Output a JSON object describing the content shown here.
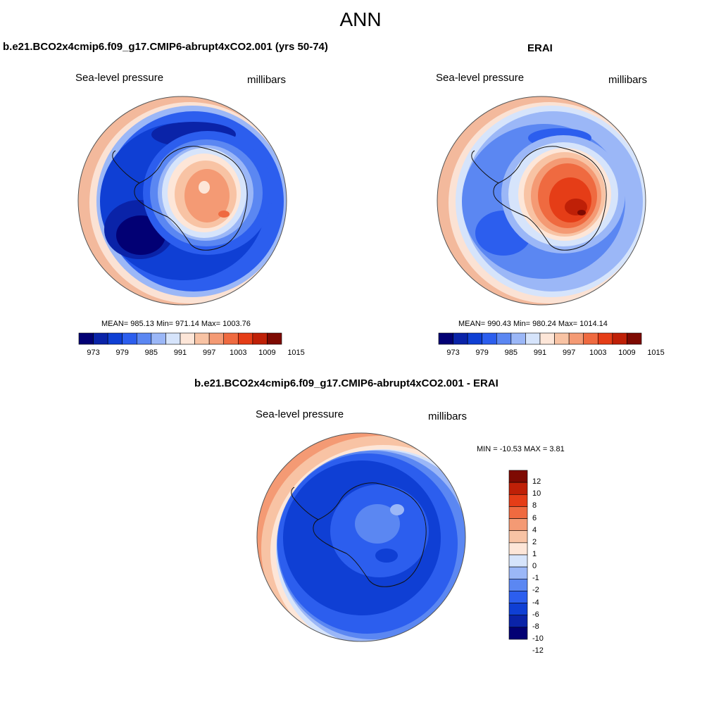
{
  "figure": {
    "title": "ANN"
  },
  "panels": {
    "model": {
      "title": "b.e21.BCO2x4cmip6.f09_g17.CMIP6-abrupt4xCO2.001 (yrs 50-74)",
      "left_label": "Sea-level pressure",
      "right_label": "millibars",
      "stats": "MEAN= 985.13  Min= 971.14  Max= 1003.76",
      "colorbar_ticks": [
        "973",
        "979",
        "985",
        "991",
        "997",
        "1003",
        "1009",
        "1015"
      ],
      "colors": [
        "#020074",
        "#0a23a8",
        "#0f3fd4",
        "#2c5eee",
        "#5b87f2",
        "#9bb7f7",
        "#d6e4fb",
        "#fde6d8",
        "#f8c3a4",
        "#f49a74",
        "#ef6a40",
        "#e53d17",
        "#bf2007",
        "#7e0a02"
      ]
    },
    "obs": {
      "title": "ERAI",
      "left_label": "Sea-level pressure",
      "right_label": "millibars",
      "stats": "MEAN= 990.43  Min= 980.24  Max= 1014.14",
      "colorbar_ticks": [
        "973",
        "979",
        "985",
        "991",
        "997",
        "1003",
        "1009",
        "1015"
      ]
    },
    "diff": {
      "title": "b.e21.BCO2x4cmip6.f09_g17.CMIP6-abrupt4xCO2.001 - ERAI",
      "left_label": "Sea-level pressure",
      "right_label": "millibars",
      "stats": "MIN = -10.53 MAX =   3.81",
      "colorbar_ticks": [
        "12",
        "10",
        "8",
        "6",
        "4",
        "2",
        "1",
        "0",
        "-1",
        "-2",
        "-4",
        "-6",
        "-8",
        "-10",
        "-12"
      ],
      "colors": [
        "#7e0a02",
        "#bf2007",
        "#e53d17",
        "#ef6a40",
        "#f49a74",
        "#f8c3a4",
        "#fde6d8",
        "#d6e4fb",
        "#9bb7f7",
        "#5b87f2",
        "#2c5eee",
        "#0f3fd4",
        "#0a23a8",
        "#020074"
      ]
    }
  }
}
